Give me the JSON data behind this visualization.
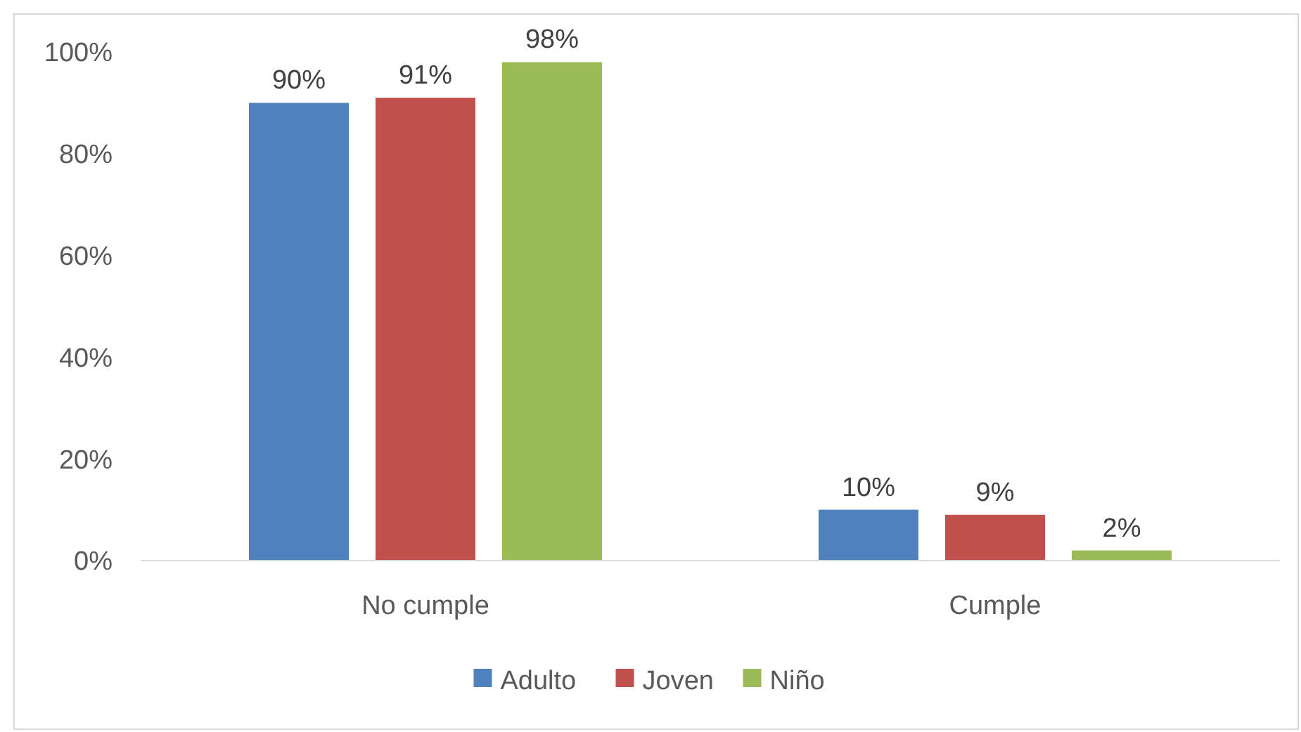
{
  "chart_data": {
    "type": "bar",
    "categories": [
      "No cumple",
      "Cumple"
    ],
    "series": [
      {
        "name": "Adulto",
        "color": "#4f81bd",
        "values": [
          90,
          10
        ]
      },
      {
        "name": "Joven",
        "color": "#c0504d",
        "values": [
          91,
          9
        ]
      },
      {
        "name": "Niño",
        "color": "#9bbb59",
        "values": [
          98,
          2
        ]
      }
    ],
    "value_labels": [
      [
        "90%",
        "10%"
      ],
      [
        "91%",
        "9%"
      ],
      [
        "98%",
        "2%"
      ]
    ],
    "ylim": [
      0,
      100
    ],
    "yticks": [
      {
        "value": 0,
        "label": "0%"
      },
      {
        "value": 20,
        "label": "20%"
      },
      {
        "value": 40,
        "label": "40%"
      },
      {
        "value": 60,
        "label": "60%"
      },
      {
        "value": 80,
        "label": "80%"
      },
      {
        "value": 100,
        "label": "100%"
      }
    ],
    "grid": false,
    "legend": "bottom"
  }
}
